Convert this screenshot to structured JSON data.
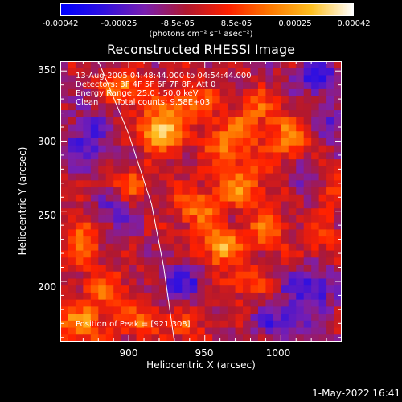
{
  "colorbar": {
    "labels": [
      "-0.00042",
      "-0.00025",
      "-8.5e-05",
      "8.5e-05",
      "0.00025",
      "0.00042"
    ],
    "units": "(photons cm⁻² s⁻¹ asec⁻²)",
    "colors": [
      "#0000ff",
      "#3010e0",
      "#7a1fb0",
      "#b01830",
      "#ff2000",
      "#ff7800",
      "#ffc020",
      "#ffffff"
    ]
  },
  "chart_data": {
    "type": "heatmap",
    "title": "Reconstructed RHESSI Image",
    "xlabel": "Heliocentric X (arcsec)",
    "ylabel": "Heliocentric Y (arcsec)",
    "xlim": [
      855,
      1040
    ],
    "ylim": [
      157,
      357
    ],
    "xticks": [
      900,
      950,
      1000
    ],
    "yticks": [
      200,
      250,
      300,
      350
    ],
    "color_range": [
      -0.00042,
      0.00042
    ],
    "peak": [
      921,
      308
    ],
    "limb_arc": [
      [
        880,
        357
      ],
      [
        900,
        305
      ],
      [
        915,
        255
      ],
      [
        923,
        210
      ],
      [
        930,
        157
      ]
    ],
    "sources": [
      {
        "x": 921,
        "y": 308,
        "v": 1.0,
        "sx": 9,
        "sy": 11
      },
      {
        "x": 897,
        "y": 338,
        "v": 0.65,
        "sx": 10,
        "sy": 7
      },
      {
        "x": 940,
        "y": 330,
        "v": 0.55,
        "sx": 10,
        "sy": 8
      },
      {
        "x": 966,
        "y": 300,
        "v": 0.6,
        "sx": 12,
        "sy": 12
      },
      {
        "x": 985,
        "y": 322,
        "v": 0.45,
        "sx": 9,
        "sy": 9
      },
      {
        "x": 1005,
        "y": 300,
        "v": 0.6,
        "sx": 9,
        "sy": 12
      },
      {
        "x": 975,
        "y": 268,
        "v": 0.55,
        "sx": 12,
        "sy": 11
      },
      {
        "x": 945,
        "y": 252,
        "v": 0.6,
        "sx": 10,
        "sy": 10
      },
      {
        "x": 960,
        "y": 225,
        "v": 0.85,
        "sx": 8,
        "sy": 9
      },
      {
        "x": 990,
        "y": 235,
        "v": 0.55,
        "sx": 9,
        "sy": 9
      },
      {
        "x": 975,
        "y": 200,
        "v": 0.4,
        "sx": 11,
        "sy": 8
      },
      {
        "x": 1025,
        "y": 230,
        "v": 0.3,
        "sx": 8,
        "sy": 12
      },
      {
        "x": 870,
        "y": 230,
        "v": 0.55,
        "sx": 8,
        "sy": 12
      },
      {
        "x": 885,
        "y": 195,
        "v": 0.45,
        "sx": 10,
        "sy": 9
      },
      {
        "x": 868,
        "y": 170,
        "v": 0.65,
        "sx": 12,
        "sy": 10
      },
      {
        "x": 910,
        "y": 172,
        "v": 0.5,
        "sx": 10,
        "sy": 8
      },
      {
        "x": 938,
        "y": 168,
        "v": 0.35,
        "sx": 8,
        "sy": 7
      },
      {
        "x": 1035,
        "y": 265,
        "v": 0.35,
        "sx": 7,
        "sy": 12
      },
      {
        "x": 900,
        "y": 270,
        "v": 0.4,
        "sx": 9,
        "sy": 9
      },
      {
        "x": 1020,
        "y": 195,
        "v": -0.55,
        "sx": 12,
        "sy": 11
      },
      {
        "x": 935,
        "y": 200,
        "v": -0.45,
        "sx": 12,
        "sy": 9
      },
      {
        "x": 872,
        "y": 300,
        "v": -0.5,
        "sx": 10,
        "sy": 14
      },
      {
        "x": 1025,
        "y": 345,
        "v": -0.5,
        "sx": 12,
        "sy": 10
      },
      {
        "x": 1015,
        "y": 275,
        "v": -0.35,
        "sx": 8,
        "sy": 10
      },
      {
        "x": 890,
        "y": 250,
        "v": -0.4,
        "sx": 9,
        "sy": 9
      },
      {
        "x": 1000,
        "y": 170,
        "v": -0.45,
        "sx": 12,
        "sy": 9
      },
      {
        "x": 1035,
        "y": 310,
        "v": -0.4,
        "sx": 8,
        "sy": 9
      }
    ]
  },
  "overlay": {
    "time": "13-Aug-2005 04:48:44.000 to 04:54:44.000",
    "detectors": "Detectors: 3F 4F 5F 6F 7F 8F, Att 0",
    "energy": "Energy Range: 25.0 - 50.0 keV",
    "method": "Clean",
    "counts": "Total counts: 9.58E+03",
    "peak": "Position of Peak = [921,308]"
  },
  "xtick_labels": [
    "900",
    "950",
    "1000"
  ],
  "ytick_labels": [
    "200",
    "250",
    "300",
    "350"
  ],
  "timestamp": "1-May-2022 16:41"
}
